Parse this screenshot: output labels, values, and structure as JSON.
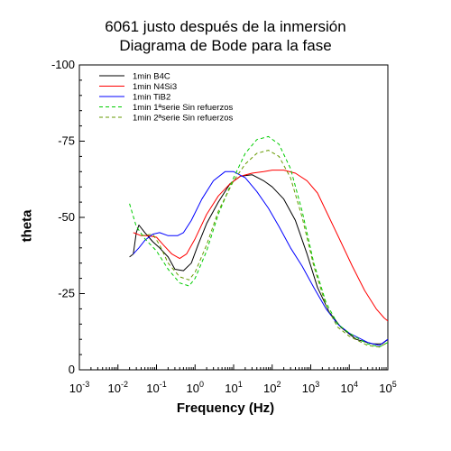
{
  "chart_data": {
    "type": "line",
    "title": "6061 justo después de la inmersión",
    "subtitle": "Diagrama de Bode para la fase",
    "xlabel": "Frequency (Hz)",
    "ylabel": "theta",
    "x_scale": "log",
    "xlim": [
      0.001,
      100000
    ],
    "ylim": [
      0,
      -100
    ],
    "y_inverted": true,
    "grid": false,
    "legend_position": "top-left",
    "x_ticks": [
      {
        "base": "10",
        "exp": "-3"
      },
      {
        "base": "10",
        "exp": "-2"
      },
      {
        "base": "10",
        "exp": "-1"
      },
      {
        "base": "10",
        "exp": "0"
      },
      {
        "base": "10",
        "exp": "1"
      },
      {
        "base": "10",
        "exp": "2"
      },
      {
        "base": "10",
        "exp": "3"
      },
      {
        "base": "10",
        "exp": "4"
      },
      {
        "base": "10",
        "exp": "5"
      }
    ],
    "y_ticks": [
      {
        "value": -100,
        "label": "-100"
      },
      {
        "value": -75,
        "label": "-75"
      },
      {
        "value": -50,
        "label": "-50"
      },
      {
        "value": -25,
        "label": "-25"
      },
      {
        "value": 0,
        "label": "0"
      }
    ],
    "series": [
      {
        "name": "1min B4C",
        "color": "#000000",
        "dash": "solid",
        "points": [
          [
            0.02,
            -37
          ],
          [
            0.025,
            -38
          ],
          [
            0.03,
            -45
          ],
          [
            0.035,
            -47.5
          ],
          [
            0.05,
            -45
          ],
          [
            0.08,
            -42
          ],
          [
            0.12,
            -40
          ],
          [
            0.2,
            -37
          ],
          [
            0.3,
            -33
          ],
          [
            0.5,
            -32.5
          ],
          [
            0.8,
            -35
          ],
          [
            1.2,
            -41
          ],
          [
            2,
            -48
          ],
          [
            4,
            -55
          ],
          [
            8,
            -61
          ],
          [
            15,
            -63.5
          ],
          [
            30,
            -64
          ],
          [
            60,
            -62
          ],
          [
            100,
            -60
          ],
          [
            200,
            -56
          ],
          [
            400,
            -49
          ],
          [
            800,
            -38
          ],
          [
            1500,
            -27
          ],
          [
            3000,
            -19
          ],
          [
            6000,
            -14
          ],
          [
            15000,
            -10
          ],
          [
            40000,
            -8.5
          ],
          [
            70000,
            -8.5
          ],
          [
            100000,
            -10
          ]
        ]
      },
      {
        "name": "1min N4Si3",
        "color": "#ff0000",
        "dash": "solid",
        "points": [
          [
            0.025,
            -45
          ],
          [
            0.04,
            -44
          ],
          [
            0.06,
            -44
          ],
          [
            0.1,
            -43.5
          ],
          [
            0.15,
            -41
          ],
          [
            0.25,
            -38
          ],
          [
            0.4,
            -36.5
          ],
          [
            0.6,
            -38
          ],
          [
            1,
            -43
          ],
          [
            2,
            -51
          ],
          [
            4,
            -57
          ],
          [
            8,
            -61
          ],
          [
            15,
            -63.5
          ],
          [
            30,
            -64.5
          ],
          [
            60,
            -65
          ],
          [
            100,
            -65.5
          ],
          [
            200,
            -65.5
          ],
          [
            400,
            -64.5
          ],
          [
            800,
            -62
          ],
          [
            1500,
            -58
          ],
          [
            3000,
            -50
          ],
          [
            6000,
            -42
          ],
          [
            12000,
            -34
          ],
          [
            25000,
            -26
          ],
          [
            50000,
            -20
          ],
          [
            80000,
            -17
          ],
          [
            100000,
            -16
          ]
        ]
      },
      {
        "name": "1min TiB2",
        "color": "#0000ff",
        "dash": "solid",
        "points": [
          [
            0.025,
            -38
          ],
          [
            0.035,
            -40
          ],
          [
            0.05,
            -42.5
          ],
          [
            0.08,
            -44.5
          ],
          [
            0.12,
            -45
          ],
          [
            0.2,
            -44
          ],
          [
            0.35,
            -44
          ],
          [
            0.5,
            -45
          ],
          [
            0.8,
            -49
          ],
          [
            1.5,
            -56
          ],
          [
            3,
            -62
          ],
          [
            6,
            -65
          ],
          [
            10,
            -65
          ],
          [
            20,
            -63
          ],
          [
            40,
            -58.5
          ],
          [
            80,
            -53
          ],
          [
            150,
            -47
          ],
          [
            300,
            -40
          ],
          [
            600,
            -34
          ],
          [
            1200,
            -27
          ],
          [
            2500,
            -20
          ],
          [
            5000,
            -15
          ],
          [
            10000,
            -12
          ],
          [
            30000,
            -9
          ],
          [
            60000,
            -8
          ],
          [
            100000,
            -10
          ]
        ]
      },
      {
        "name": "1min 1ªserie Sin refuerzos",
        "color": "#00cc00",
        "dash": "dashed",
        "points": [
          [
            0.02,
            -54.5
          ],
          [
            0.03,
            -47
          ],
          [
            0.05,
            -43
          ],
          [
            0.1,
            -39
          ],
          [
            0.2,
            -33
          ],
          [
            0.4,
            -28.5
          ],
          [
            0.7,
            -27.5
          ],
          [
            1,
            -30
          ],
          [
            2,
            -39
          ],
          [
            4,
            -51
          ],
          [
            10,
            -63
          ],
          [
            20,
            -71
          ],
          [
            40,
            -75.5
          ],
          [
            80,
            -76.5
          ],
          [
            150,
            -74
          ],
          [
            300,
            -66
          ],
          [
            600,
            -52
          ],
          [
            1200,
            -35
          ],
          [
            2500,
            -22
          ],
          [
            5000,
            -15
          ],
          [
            10000,
            -12
          ],
          [
            30000,
            -8.5
          ],
          [
            60000,
            -7.5
          ],
          [
            100000,
            -9
          ]
        ]
      },
      {
        "name": "1min 2ªserie Sin refuerzos",
        "color": "#669900",
        "dash": "dashed",
        "points": [
          [
            0.04,
            -44
          ],
          [
            0.08,
            -44.5
          ],
          [
            0.12,
            -41
          ],
          [
            0.2,
            -35
          ],
          [
            0.4,
            -30.5
          ],
          [
            0.7,
            -29.5
          ],
          [
            1,
            -32
          ],
          [
            2,
            -41
          ],
          [
            4,
            -52
          ],
          [
            10,
            -62
          ],
          [
            20,
            -67.5
          ],
          [
            40,
            -71
          ],
          [
            80,
            -72
          ],
          [
            150,
            -70
          ],
          [
            300,
            -63
          ],
          [
            600,
            -50
          ],
          [
            1200,
            -34
          ],
          [
            2500,
            -21
          ],
          [
            5000,
            -14
          ],
          [
            10000,
            -11
          ],
          [
            30000,
            -8
          ],
          [
            60000,
            -7.5
          ],
          [
            100000,
            -9
          ]
        ]
      }
    ]
  }
}
